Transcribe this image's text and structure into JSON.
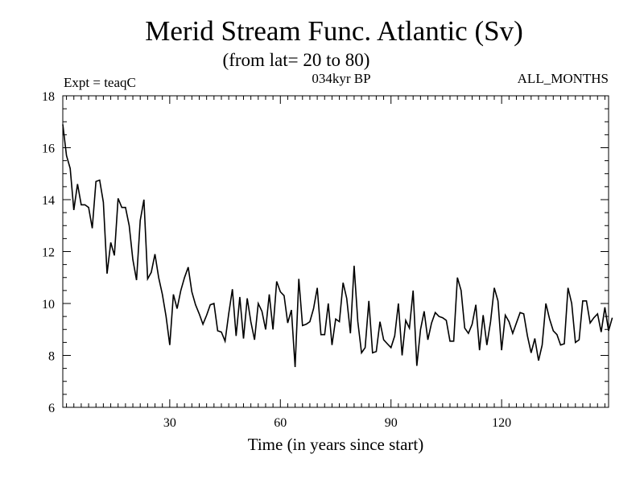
{
  "chart_data": {
    "type": "line",
    "title": "Merid Stream Func. Atlantic (Sv)",
    "subtitle": "(from lat= 20 to 80)",
    "left_label": "Expt = teaqC",
    "center_label": "034kyr BP",
    "right_label": "ALL_MONTHS",
    "xlabel": "Time (in years since start)",
    "ylabel": "",
    "xlim": [
      1,
      149
    ],
    "ylim": [
      6,
      18
    ],
    "x_ticks": [
      30,
      60,
      90,
      120
    ],
    "y_ticks": [
      6,
      8,
      10,
      12,
      14,
      16,
      18
    ],
    "x_start": 1,
    "x_step": 1,
    "series": [
      {
        "name": "Merid Stream Func. Atlantic",
        "color": "#000000",
        "values": [
          16.9,
          15.7,
          15.2,
          13.6,
          14.6,
          13.8,
          13.8,
          13.7,
          12.9,
          14.7,
          14.75,
          13.9,
          11.15,
          12.35,
          11.85,
          14.05,
          13.7,
          13.7,
          13.0,
          11.7,
          10.9,
          13.2,
          14.0,
          10.95,
          11.2,
          11.9,
          11.0,
          10.35,
          9.5,
          8.4,
          10.35,
          9.8,
          10.5,
          11.0,
          11.4,
          10.45,
          9.95,
          9.6,
          9.2,
          9.55,
          9.95,
          10.0,
          8.95,
          8.9,
          8.55,
          9.6,
          10.55,
          8.75,
          10.25,
          8.65,
          10.2,
          9.3,
          8.6,
          10.0,
          9.7,
          9.0,
          10.35,
          9.0,
          10.85,
          10.45,
          10.3,
          9.25,
          9.75,
          7.55,
          10.95,
          9.15,
          9.2,
          9.3,
          9.8,
          10.6,
          8.8,
          8.8,
          10.0,
          8.4,
          9.4,
          9.3,
          10.8,
          10.2,
          8.85,
          11.45,
          9.3,
          8.1,
          8.3,
          10.1,
          8.1,
          8.15,
          9.3,
          8.6,
          8.45,
          8.3,
          8.75,
          10.0,
          8.0,
          9.35,
          9.05,
          10.5,
          7.6,
          9.0,
          9.7,
          8.6,
          9.25,
          9.65,
          9.5,
          9.45,
          9.35,
          8.55,
          8.55,
          11.0,
          10.5,
          9.05,
          8.85,
          9.2,
          9.95,
          8.2,
          9.55,
          8.4,
          9.3,
          10.6,
          10.1,
          8.2,
          9.55,
          9.3,
          8.85,
          9.25,
          9.65,
          9.6,
          8.75,
          8.1,
          8.65,
          7.8,
          8.4,
          10.0,
          9.4,
          8.95,
          8.8,
          8.4,
          8.45,
          10.6,
          10.0,
          8.5,
          8.6,
          10.1,
          10.1,
          9.25,
          9.45,
          9.6,
          8.9,
          9.85,
          8.95,
          9.45
        ]
      }
    ],
    "legend": "none",
    "grid": false
  }
}
